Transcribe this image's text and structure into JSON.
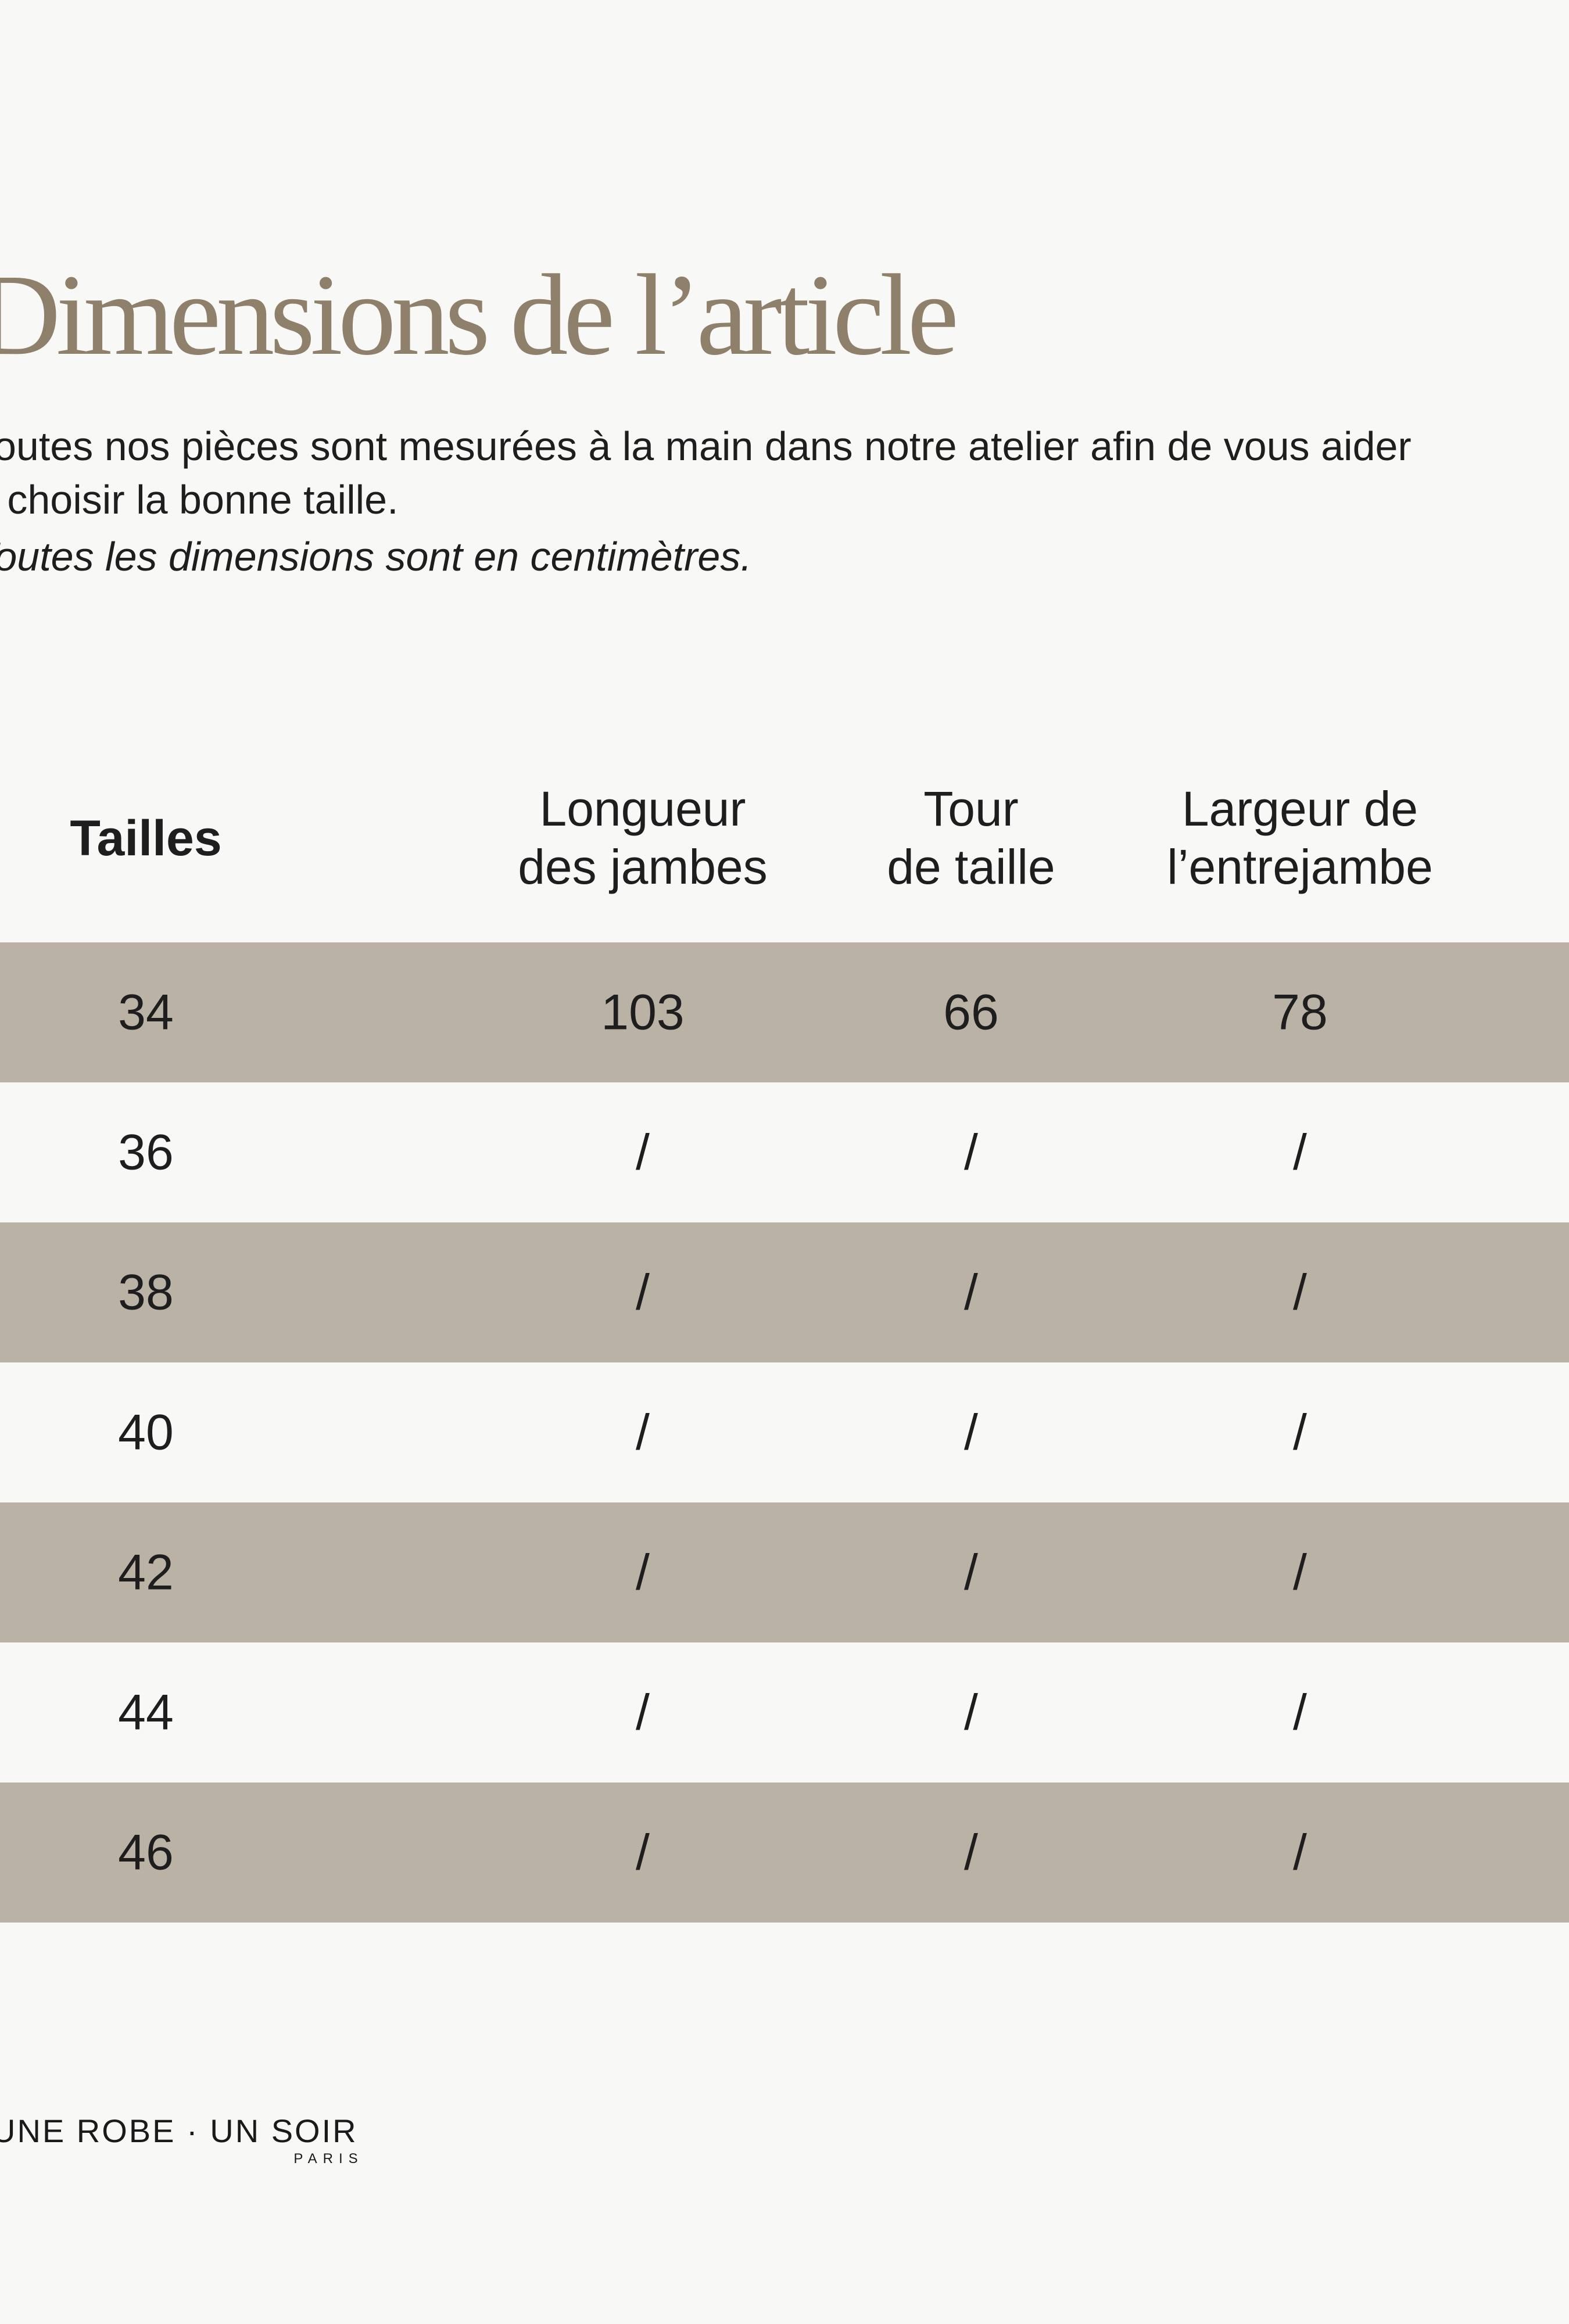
{
  "title": "Dimensions de l’article",
  "intro": {
    "line1": "Toutes nos pièces sont mesurées à la main dans notre atelier afin de vous aider",
    "line2": "à choisir la bonne taille.",
    "note": "Toutes les dimensions sont en centimètres."
  },
  "table": {
    "size_col_header": "Tailles",
    "columns": [
      {
        "line1": "Longueur",
        "line2": "des jambes"
      },
      {
        "line1": "Tour",
        "line2": "de taille"
      },
      {
        "line1": "Largeur de",
        "line2": "l’entrejambe"
      }
    ],
    "rows": [
      {
        "size": "34",
        "values": [
          "103",
          "66",
          "78"
        ]
      },
      {
        "size": "36",
        "values": [
          "/",
          "/",
          "/"
        ]
      },
      {
        "size": "38",
        "values": [
          "/",
          "/",
          "/"
        ]
      },
      {
        "size": "40",
        "values": [
          "/",
          "/",
          "/"
        ]
      },
      {
        "size": "42",
        "values": [
          "/",
          "/",
          "/"
        ]
      },
      {
        "size": "44",
        "values": [
          "/",
          "/",
          "/"
        ]
      },
      {
        "size": "46",
        "values": [
          "/",
          "/",
          "/"
        ]
      }
    ]
  },
  "footer": {
    "brand": "UNE ROBE · UN SOIR",
    "city": "PARIS"
  },
  "colors": {
    "bg": "#f8f8f6",
    "rowAlt": "#bab2a5",
    "title": "#8e806b",
    "text": "#1e1e1e"
  }
}
